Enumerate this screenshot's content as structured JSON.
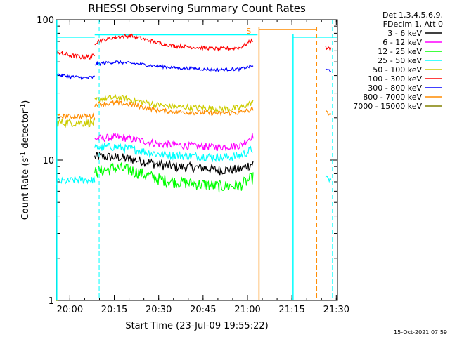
{
  "chart_data": {
    "type": "line",
    "title": "RHESSI Observing Summary Count Rates",
    "xlabel": "Start Time (23-Jul-09 19:55:22)",
    "ylabel_main": "Count Rate (s",
    "ylabel_sup": "-1",
    "ylabel_mid": " detector",
    "ylabel_sup2": "-1",
    "ylabel_end": ")",
    "yscale": "log",
    "ylim": [
      1,
      100
    ],
    "xlim_min": [
      0,
      95
    ],
    "x_ticks": [
      {
        "label": "20:00",
        "min": 4.6
      },
      {
        "label": "20:15",
        "min": 19.6
      },
      {
        "label": "20:30",
        "min": 34.6
      },
      {
        "label": "20:45",
        "min": 49.6
      },
      {
        "label": "21:00",
        "min": 64.6
      },
      {
        "label": "21:15",
        "min": 79.6
      },
      {
        "label": "21:30",
        "min": 94.6
      }
    ],
    "y_ticks": [
      {
        "label": "1",
        "value": 1
      },
      {
        "label": "10",
        "value": 10
      },
      {
        "label": "100",
        "value": 100
      }
    ],
    "legend_header": [
      "Det 1,3,4,5,6,9,",
      "FDecim 1, Att 0"
    ],
    "legend_placement": "right",
    "series": [
      {
        "name": "3 - 6 keV",
        "color": "#000000",
        "segments": [
          {
            "x": [
              13,
              14,
              20,
              25,
              35,
              40,
              50,
              55,
              62,
              66.5
            ],
            "y": [
              10.5,
              10.6,
              10.5,
              10.2,
              9.3,
              9.0,
              8.8,
              8.5,
              8.6,
              9.5
            ],
            "noise": 0.08
          }
        ]
      },
      {
        "name": "6 - 12 keV",
        "color": "#ff00ff",
        "segments": [
          {
            "x": [
              13,
              14,
              20,
              25,
              35,
              40,
              50,
              55,
              62,
              66.5
            ],
            "y": [
              14,
              14.3,
              14.6,
              14.2,
              13,
              12.8,
              12.5,
              12.4,
              12.7,
              15
            ],
            "noise": 0.06
          }
        ]
      },
      {
        "name": "12 - 25 keV",
        "color": "#00ff00",
        "segments": [
          {
            "x": [
              0,
              0.5
            ],
            "y": [
              1,
              1
            ],
            "noise": 0
          },
          {
            "x": [
              13,
              14,
              20,
              25,
              35,
              40,
              50,
              55,
              62,
              66.5
            ],
            "y": [
              8.0,
              8.3,
              8.8,
              8.5,
              7.3,
              7.0,
              6.7,
              6.5,
              6.6,
              7.5
            ],
            "noise": 0.1
          }
        ]
      },
      {
        "name": "25 - 50 keV",
        "color": "#00ffff",
        "segments": [
          {
            "x": [
              0,
              4,
              8,
              12,
              13
            ],
            "y": [
              7.0,
              7.1,
              7.3,
              7.2,
              7.3
            ],
            "noise": 0.06
          },
          {
            "x": [
              13,
              14,
              20,
              25,
              35,
              40,
              50,
              55,
              62,
              66.5
            ],
            "y": [
              12,
              12.3,
              12.5,
              12,
              11,
              10.8,
              10.6,
              10.4,
              10.7,
              12
            ],
            "noise": 0.07
          },
          {
            "x": [
              91,
              92.8
            ],
            "y": [
              7.3,
              7.3
            ],
            "noise": 0.06
          },
          {
            "x": [
              0,
              13
            ],
            "y": [
              75,
              75
            ],
            "noise": 0
          },
          {
            "x": [
              13,
              68
            ],
            "y": [
              78,
              78
            ],
            "noise": 0
          },
          {
            "x": [
              80,
              95
            ],
            "y": [
              75,
              75
            ],
            "noise": 0
          }
        ]
      },
      {
        "name": "50 - 100 keV",
        "color": "#cccc00",
        "segments": [
          {
            "x": [
              0,
              13
            ],
            "y": [
              18.5,
              18.5
            ],
            "noise": 0.07
          },
          {
            "x": [
              13,
              14,
              20,
              25,
              35,
              40,
              50,
              55,
              62,
              66.5
            ],
            "y": [
              26,
              27,
              28,
              27,
              24.5,
              24,
              23.5,
              23,
              23.5,
              26
            ],
            "noise": 0.05
          }
        ]
      },
      {
        "name": "100 - 300 keV",
        "color": "#ff0000",
        "segments": [
          {
            "x": [
              0,
              2,
              6,
              10,
              13
            ],
            "y": [
              60,
              57,
              55,
              54,
              55
            ],
            "noise": 0.04
          },
          {
            "x": [
              13,
              14,
              20,
              25,
              35,
              40,
              50,
              55,
              62,
              66.5
            ],
            "y": [
              68,
              70,
              75,
              77,
              68,
              65,
              63,
              62,
              63,
              72
            ],
            "noise": 0.03
          },
          {
            "x": [
              91,
              92.8
            ],
            "y": [
              63,
              62
            ],
            "noise": 0.03
          }
        ]
      },
      {
        "name": "300 - 800 keV",
        "color": "#0000ff",
        "segments": [
          {
            "x": [
              0,
              2,
              6,
              10,
              13
            ],
            "y": [
              41,
              40,
              39,
              38.5,
              39
            ],
            "noise": 0.03
          },
          {
            "x": [
              13,
              14,
              20,
              25,
              35,
              40,
              50,
              55,
              62,
              66.5
            ],
            "y": [
              48,
              48.5,
              50,
              49,
              46.5,
              45.5,
              44.5,
              44,
              44.5,
              47
            ],
            "noise": 0.025
          },
          {
            "x": [
              91,
              92.8
            ],
            "y": [
              44,
              43.5
            ],
            "noise": 0.025
          }
        ]
      },
      {
        "name": "800 - 7000 keV",
        "color": "#ff8c00",
        "segments": [
          {
            "x": [
              0,
              13
            ],
            "y": [
              20.5,
              20.5
            ],
            "noise": 0.04
          },
          {
            "x": [
              13,
              14,
              20,
              25,
              35,
              40,
              50,
              55,
              62,
              66.5
            ],
            "y": [
              24.5,
              25,
              25.5,
              25,
              22.5,
              22,
              21.8,
              21.6,
              21.8,
              23
            ],
            "noise": 0.04
          },
          {
            "x": [
              68.5,
              88
            ],
            "y": [
              85,
              85
            ],
            "noise": 0
          },
          {
            "x": [
              91,
              92.8
            ],
            "y": [
              22,
              21
            ],
            "noise": 0.03
          }
        ]
      },
      {
        "name": "7000 - 15000 keV",
        "color": "#808000",
        "segments": [
          {
            "x": [
              0,
              0.4
            ],
            "y": [
              1,
              1
            ],
            "noise": 0
          }
        ]
      }
    ],
    "annotations": [
      {
        "text": "S",
        "x": 67.5,
        "y": 83,
        "color": "#ff8c00"
      }
    ]
  },
  "footer": {
    "timestamp": "15-Oct-2021 07:59"
  }
}
